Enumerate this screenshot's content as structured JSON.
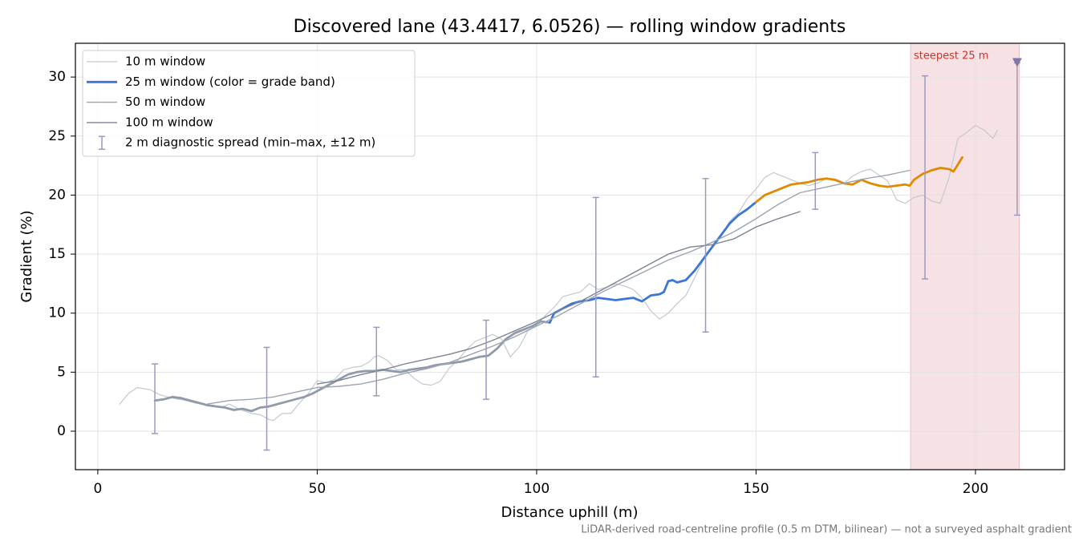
{
  "chart_data": {
    "type": "line",
    "title": "Discovered lane (43.4417, 6.0526) — rolling window gradients",
    "x_label": "Distance uphill (m)",
    "y_label": "Gradient (%)",
    "footnote": "LiDAR-derived road-centreline profile (0.5 m DTM, bilinear) — not a surveyed asphalt gradient",
    "xlim": [
      -5.1,
      220.3
    ],
    "ylim": [
      -3.26,
      32.86
    ],
    "xticks": [
      0,
      50,
      100,
      150,
      200
    ],
    "yticks": [
      0,
      5,
      10,
      15,
      20,
      25,
      30
    ],
    "grid": true,
    "legend": "upper left",
    "series": [
      {
        "name": "10 m window",
        "color": "#c3c8d1",
        "width": 1.2,
        "x": [
          5,
          7,
          9,
          12,
          14,
          17,
          20,
          22,
          25,
          28,
          30,
          32,
          35,
          37,
          39,
          40,
          42,
          44,
          46,
          48,
          50,
          52,
          54,
          56,
          58,
          60,
          62,
          63,
          64,
          66,
          68,
          70,
          72,
          74,
          76,
          78,
          80,
          82,
          84,
          86,
          88,
          90,
          92,
          94,
          96,
          98,
          100,
          102,
          104,
          106,
          108,
          110,
          112,
          114,
          116,
          118,
          120,
          122,
          124,
          126,
          128,
          130,
          132,
          134,
          136,
          138,
          140,
          142,
          144,
          146,
          148,
          150,
          152,
          154,
          156,
          158,
          160,
          162,
          164,
          166,
          168,
          170,
          172,
          174,
          176,
          178,
          180,
          182,
          184,
          186,
          188,
          190,
          192,
          194,
          196,
          198,
          200,
          202,
          204,
          205
        ],
        "values": [
          2.3,
          3.2,
          3.7,
          3.5,
          3.1,
          2.8,
          2.6,
          2.4,
          2.2,
          2.0,
          2.3,
          1.9,
          1.5,
          1.4,
          1.0,
          0.9,
          1.5,
          1.5,
          2.4,
          3.2,
          4.3,
          4.1,
          4.4,
          5.2,
          5.4,
          5.5,
          5.9,
          6.3,
          6.4,
          6.0,
          5.2,
          5.2,
          4.5,
          4.0,
          3.9,
          4.2,
          5.3,
          6.0,
          6.9,
          7.6,
          7.9,
          8.2,
          7.8,
          6.3,
          7.1,
          8.5,
          9.0,
          9.8,
          10.5,
          11.4,
          11.6,
          11.8,
          12.5,
          12.0,
          12.2,
          12.5,
          12.3,
          12.0,
          11.3,
          10.2,
          9.5,
          10.0,
          10.8,
          11.5,
          13.0,
          14.5,
          15.5,
          16.5,
          17.8,
          18.5,
          19.7,
          20.5,
          21.5,
          21.9,
          21.6,
          21.3,
          21.0,
          20.8,
          21.0,
          21.4,
          21.2,
          21.0,
          21.6,
          22.0,
          22.2,
          21.7,
          21.2,
          19.6,
          19.3,
          19.8,
          20.0,
          19.5,
          19.3,
          21.5,
          24.8,
          25.3,
          25.9,
          25.5,
          24.8,
          25.5
        ]
      },
      {
        "name": "25 m window (color = grade band)",
        "color": "#3a76d6",
        "width": 2.8,
        "band_colors": [
          {
            "max": 10,
            "color": "#8f9aab"
          },
          {
            "max": 20,
            "color": "#3a76d6"
          },
          {
            "color": "#e08a00"
          }
        ],
        "x": [
          13,
          15,
          17,
          19,
          21,
          23,
          25,
          27,
          29,
          31,
          33,
          35,
          37,
          39,
          41,
          43,
          45,
          47,
          49,
          51,
          53,
          55,
          57,
          59,
          61,
          63,
          65,
          67,
          69,
          71,
          73,
          75,
          77,
          79,
          81,
          83,
          85,
          87,
          89,
          91,
          93,
          95,
          97,
          99,
          101,
          103,
          104,
          106,
          108,
          110,
          112,
          114,
          116,
          118,
          120,
          122,
          124,
          126,
          128,
          129,
          130,
          131,
          132,
          134,
          136,
          138,
          140,
          142,
          144,
          146,
          148,
          150,
          152,
          154,
          156,
          158,
          160,
          162,
          164,
          166,
          168,
          170,
          172,
          174,
          176,
          178,
          180,
          182,
          184,
          185,
          186,
          188,
          190,
          192,
          194,
          195,
          196,
          197
        ],
        "values": [
          2.6,
          2.7,
          2.9,
          2.8,
          2.6,
          2.4,
          2.2,
          2.1,
          2.0,
          1.8,
          1.9,
          1.7,
          2.0,
          2.1,
          2.3,
          2.5,
          2.7,
          2.9,
          3.2,
          3.6,
          4.0,
          4.4,
          4.8,
          5.0,
          5.1,
          5.1,
          5.2,
          5.1,
          5.0,
          5.2,
          5.3,
          5.4,
          5.6,
          5.7,
          5.8,
          5.9,
          6.1,
          6.3,
          6.4,
          7.0,
          7.8,
          8.3,
          8.6,
          8.9,
          9.3,
          9.2,
          10.0,
          10.4,
          10.8,
          11.0,
          11.1,
          11.3,
          11.2,
          11.1,
          11.2,
          11.3,
          11.0,
          11.5,
          11.6,
          11.8,
          12.7,
          12.8,
          12.6,
          12.8,
          13.6,
          14.6,
          15.6,
          16.6,
          17.6,
          18.3,
          18.8,
          19.4,
          20.0,
          20.3,
          20.6,
          20.9,
          21.0,
          21.1,
          21.3,
          21.4,
          21.3,
          21.0,
          20.9,
          21.3,
          21.0,
          20.8,
          20.7,
          20.8,
          20.9,
          20.8,
          21.3,
          21.8,
          22.1,
          22.3,
          22.2,
          22.0,
          22.6,
          23.2
        ]
      },
      {
        "name": "50 m window",
        "color": "#9ba4b2",
        "width": 1.4,
        "x": [
          25,
          30,
          35,
          40,
          45,
          50,
          55,
          60,
          65,
          70,
          75,
          80,
          85,
          90,
          95,
          100,
          105,
          110,
          115,
          120,
          125,
          130,
          135,
          140,
          145,
          150,
          155,
          160,
          165,
          170,
          175,
          180,
          185
        ],
        "values": [
          2.3,
          2.6,
          2.7,
          2.9,
          3.3,
          3.7,
          3.8,
          4.0,
          4.4,
          4.9,
          5.3,
          5.8,
          6.5,
          7.2,
          8.0,
          8.9,
          9.8,
          10.8,
          11.8,
          12.7,
          13.6,
          14.5,
          15.2,
          16.0,
          16.9,
          18.0,
          19.2,
          20.2,
          20.6,
          21.0,
          21.4,
          21.7,
          22.1
        ]
      },
      {
        "name": "100 m window",
        "color": "#7c8493",
        "width": 1.4,
        "x": [
          50,
          55,
          60,
          65,
          70,
          75,
          80,
          85,
          90,
          95,
          100,
          105,
          110,
          115,
          120,
          125,
          130,
          135,
          140,
          145,
          150,
          155,
          160
        ],
        "values": [
          4.0,
          4.3,
          4.8,
          5.2,
          5.7,
          6.1,
          6.5,
          7.0,
          7.7,
          8.5,
          9.3,
          10.2,
          11.0,
          12.0,
          13.0,
          14.0,
          15.0,
          15.6,
          15.8,
          16.3,
          17.3,
          18.0,
          18.6
        ]
      }
    ],
    "error_bars": {
      "name": "2 m diagnostic spread (min–max, ±12 m)",
      "color": "#9d99bd",
      "x": [
        13,
        38.5,
        63.5,
        88.5,
        113.5,
        138.5,
        163.5,
        188.5,
        209.5
      ],
      "low": [
        -0.2,
        -1.6,
        3.0,
        2.7,
        4.6,
        8.4,
        18.8,
        12.9,
        18.3
      ],
      "high": [
        5.7,
        7.1,
        8.8,
        9.4,
        19.8,
        21.4,
        23.6,
        30.1,
        31.2
      ]
    },
    "highlight": {
      "x0": 185.2,
      "x1": 210,
      "label": "steepest 25 m",
      "color": "#e8b3bd",
      "label_color": "#c0392b"
    },
    "steepest_marker": {
      "x": 209.5,
      "y": 31.2,
      "color": "#8078a8"
    }
  }
}
